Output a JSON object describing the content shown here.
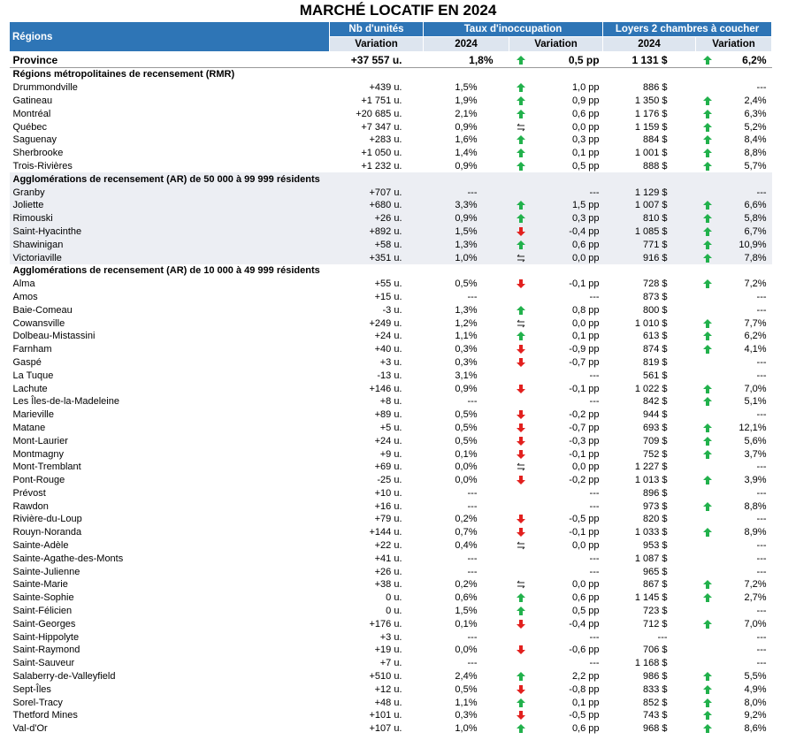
{
  "title": "MARCHÉ LOCATIF EN 2024",
  "header": {
    "regions": "Régions",
    "units": "Nb d'unités",
    "units_sub": "Variation",
    "vacancy": "Taux d'inoccupation",
    "vacancy_year": "2024",
    "vacancy_var": "Variation",
    "rent": "Loyers 2 chambres à coucher",
    "rent_year": "2024",
    "rent_var": "Variation"
  },
  "province": [
    "Province",
    "+37 557 u.",
    "1,8%",
    "0,5 pp",
    "1 131 $",
    "6,2%"
  ],
  "sections": [
    {
      "title": "Régions métropolitaines de recensement (RMR)",
      "rows": [
        [
          "Drummondville",
          "+439 u.",
          "1,5%",
          "1,0 pp",
          "886 $",
          "---"
        ],
        [
          "Gatineau",
          "+1 751 u.",
          "1,9%",
          "0,9 pp",
          "1 350 $",
          "2,4%"
        ],
        [
          "Montréal",
          "+20 685 u.",
          "2,1%",
          "0,6 pp",
          "1 176 $",
          "6,3%"
        ],
        [
          "Québec",
          "+7 347 u.",
          "0,9%",
          "0,0 pp",
          "1 159 $",
          "5,2%"
        ],
        [
          "Saguenay",
          "+283 u.",
          "1,6%",
          "0,3 pp",
          "884 $",
          "8,4%"
        ],
        [
          "Sherbrooke",
          "+1 050 u.",
          "1,4%",
          "0,1 pp",
          "1 001 $",
          "8,8%"
        ],
        [
          "Trois-Rivières",
          "+1 232 u.",
          "0,9%",
          "0,5 pp",
          "888 $",
          "5,7%"
        ]
      ]
    },
    {
      "title": "Agglomérations de recensement (AR) de 50 000 à 99 999 résidents",
      "rows": [
        [
          "Granby",
          "+707 u.",
          "---",
          "---",
          "1 129 $",
          "---"
        ],
        [
          "Joliette",
          "+680 u.",
          "3,3%",
          "1,5 pp",
          "1 007 $",
          "6,6%"
        ],
        [
          "Rimouski",
          "+26 u.",
          "0,9%",
          "0,3 pp",
          "810 $",
          "5,8%"
        ],
        [
          "Saint-Hyacinthe",
          "+892 u.",
          "1,5%",
          "-0,4 pp",
          "1 085 $",
          "6,7%"
        ],
        [
          "Shawinigan",
          "+58 u.",
          "1,3%",
          "0,6 pp",
          "771 $",
          "10,9%"
        ],
        [
          "Victoriaville",
          "+351 u.",
          "1,0%",
          "0,0 pp",
          "916 $",
          "7,8%"
        ]
      ]
    },
    {
      "title": "Agglomérations de recensement (AR) de 10 000 à 49 999 résidents",
      "rows": [
        [
          "Alma",
          "+55 u.",
          "0,5%",
          "-0,1 pp",
          "728 $",
          "7,2%"
        ],
        [
          "Amos",
          "+15 u.",
          "---",
          "---",
          "873 $",
          "---"
        ],
        [
          "Baie-Comeau",
          "-3 u.",
          "1,3%",
          "0,8 pp",
          "800 $",
          "---"
        ],
        [
          "Cowansville",
          "+249 u.",
          "1,2%",
          "0,0 pp",
          "1 010 $",
          "7,7%"
        ],
        [
          "Dolbeau-Mistassini",
          "+24 u.",
          "1,1%",
          "0,1 pp",
          "613 $",
          "6,2%"
        ],
        [
          "Farnham",
          "+40 u.",
          "0,3%",
          "-0,9 pp",
          "874 $",
          "4,1%"
        ],
        [
          "Gaspé",
          "+3 u.",
          "0,3%",
          "-0,7 pp",
          "819 $",
          "---"
        ],
        [
          "La Tuque",
          "-13 u.",
          "3,1%",
          "---",
          "561 $",
          "---"
        ],
        [
          "Lachute",
          "+146 u.",
          "0,9%",
          "-0,1 pp",
          "1 022 $",
          "7,0%"
        ],
        [
          "Les Îles-de-la-Madeleine",
          "+8 u.",
          "---",
          "---",
          "842 $",
          "5,1%"
        ],
        [
          "Marieville",
          "+89 u.",
          "0,5%",
          "-0,2 pp",
          "944 $",
          "---"
        ],
        [
          "Matane",
          "+5 u.",
          "0,5%",
          "-0,7 pp",
          "693 $",
          "12,1%"
        ],
        [
          "Mont-Laurier",
          "+24 u.",
          "0,5%",
          "-0,3 pp",
          "709 $",
          "5,6%"
        ],
        [
          "Montmagny",
          "+9 u.",
          "0,1%",
          "-0,1 pp",
          "752 $",
          "3,7%"
        ],
        [
          "Mont-Tremblant",
          "+69 u.",
          "0,0%",
          "0,0 pp",
          "1 227 $",
          "---"
        ],
        [
          "Pont-Rouge",
          "-25 u.",
          "0,0%",
          "-0,2 pp",
          "1 013 $",
          "3,9%"
        ],
        [
          "Prévost",
          "+10 u.",
          "---",
          "---",
          "896 $",
          "---"
        ],
        [
          "Rawdon",
          "+16 u.",
          "---",
          "---",
          "973 $",
          "8,8%"
        ],
        [
          "Rivière-du-Loup",
          "+79 u.",
          "0,2%",
          "-0,5 pp",
          "820 $",
          "---"
        ],
        [
          "Rouyn-Noranda",
          "+144 u.",
          "0,7%",
          "-0,1 pp",
          "1 033 $",
          "8,9%"
        ],
        [
          "Sainte-Adèle",
          "+22 u.",
          "0,4%",
          "0,0 pp",
          "953 $",
          "---"
        ],
        [
          "Sainte-Agathe-des-Monts",
          "+41 u.",
          "---",
          "---",
          "1 087 $",
          "---"
        ],
        [
          "Sainte-Julienne",
          "+26 u.",
          "---",
          "---",
          "965 $",
          "---"
        ],
        [
          "Sainte-Marie",
          "+38 u.",
          "0,2%",
          "0,0 pp",
          "867 $",
          "7,2%"
        ],
        [
          "Sainte-Sophie",
          "0 u.",
          "0,6%",
          "0,6 pp",
          "1 145 $",
          "2,7%"
        ],
        [
          "Saint-Félicien",
          "0 u.",
          "1,5%",
          "0,5 pp",
          "723 $",
          "---"
        ],
        [
          "Saint-Georges",
          "+176 u.",
          "0,1%",
          "-0,4 pp",
          "712 $",
          "7,0%"
        ],
        [
          "Saint-Hippolyte",
          "+3 u.",
          "---",
          "---",
          "---",
          "---"
        ],
        [
          "Saint-Raymond",
          "+19 u.",
          "0,0%",
          "-0,6 pp",
          "706 $",
          "---"
        ],
        [
          "Saint-Sauveur",
          "+7 u.",
          "---",
          "---",
          "1 168 $",
          "---"
        ],
        [
          "Salaberry-de-Valleyfield",
          "+510 u.",
          "2,4%",
          "2,2 pp",
          "986 $",
          "5,5%"
        ],
        [
          "Sept-Îles",
          "+12 u.",
          "0,5%",
          "-0,8 pp",
          "833 $",
          "4,9%"
        ],
        [
          "Sorel-Tracy",
          "+48 u.",
          "1,1%",
          "0,1 pp",
          "852 $",
          "8,0%"
        ],
        [
          "Thetford Mines",
          "+101 u.",
          "0,3%",
          "-0,5 pp",
          "743 $",
          "9,2%"
        ],
        [
          "Val-d'Or",
          "+107 u.",
          "1,0%",
          "0,6 pp",
          "968 $",
          "8,6%"
        ]
      ]
    }
  ]
}
